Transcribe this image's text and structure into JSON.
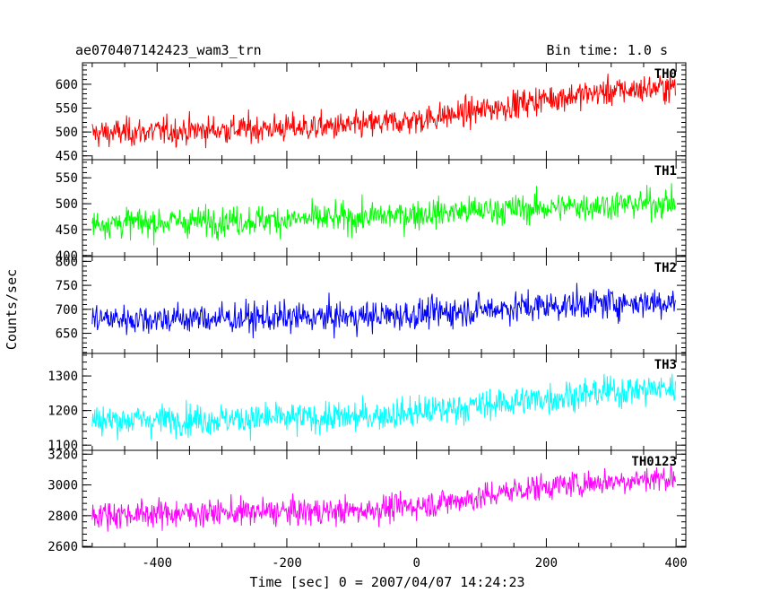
{
  "chart_data": {
    "type": "line",
    "title": "ae070407142423_wam3_trn",
    "bin_time_label": "Bin time: 1.0 s",
    "xlabel": "Time [sec] 0 = 2007/04/07 14:24:23",
    "ylabel": "Counts/sec",
    "xlim": [
      -515,
      415
    ],
    "x_ticks": [
      -400,
      -200,
      0,
      200,
      400
    ],
    "x_range_data": [
      -500,
      399
    ],
    "grid": false,
    "panels": [
      {
        "name": "TH0",
        "color": "#ff0000",
        "ylim": [
          442,
          645
        ],
        "y_ticks": [
          450,
          500,
          550,
          600
        ],
        "trend": [
          [
            -500,
            497
          ],
          [
            -300,
            505
          ],
          [
            -100,
            512
          ],
          [
            0,
            525
          ],
          [
            100,
            545
          ],
          [
            200,
            570
          ],
          [
            300,
            585
          ],
          [
            399,
            595
          ]
        ],
        "noise": 25
      },
      {
        "name": "TH1",
        "color": "#00ff00",
        "ylim": [
          398,
          585
        ],
        "y_ticks": [
          400,
          450,
          500,
          550
        ],
        "trend": [
          [
            -500,
            462
          ],
          [
            -300,
            467
          ],
          [
            -100,
            472
          ],
          [
            0,
            480
          ],
          [
            100,
            487
          ],
          [
            200,
            492
          ],
          [
            300,
            498
          ],
          [
            399,
            502
          ]
        ],
        "noise": 24
      },
      {
        "name": "TH2",
        "color": "#0000ff",
        "ylim": [
          608,
          810
        ],
        "y_ticks": [
          650,
          700,
          750,
          800
        ],
        "trend": [
          [
            -500,
            680
          ],
          [
            -300,
            681
          ],
          [
            -100,
            684
          ],
          [
            0,
            689
          ],
          [
            100,
            700
          ],
          [
            200,
            707
          ],
          [
            300,
            713
          ],
          [
            399,
            716
          ]
        ],
        "noise": 27
      },
      {
        "name": "TH3",
        "color": "#00ffff",
        "ylim": [
          1085,
          1365
        ],
        "y_ticks": [
          1100,
          1200,
          1300
        ],
        "trend": [
          [
            -500,
            1172
          ],
          [
            -300,
            1175
          ],
          [
            -100,
            1180
          ],
          [
            0,
            1195
          ],
          [
            100,
            1215
          ],
          [
            200,
            1235
          ],
          [
            300,
            1255
          ],
          [
            399,
            1265
          ]
        ],
        "noise": 38
      },
      {
        "name": "TH0123",
        "color": "#ff00ff",
        "ylim": [
          2595,
          3225
        ],
        "y_ticks": [
          2600,
          2800,
          3000,
          3200
        ],
        "trend": [
          [
            -500,
            2808
          ],
          [
            -300,
            2820
          ],
          [
            -100,
            2830
          ],
          [
            0,
            2865
          ],
          [
            100,
            2920
          ],
          [
            150,
            2965
          ],
          [
            200,
            2990
          ],
          [
            300,
            3025
          ],
          [
            399,
            3050
          ]
        ],
        "noise": 75
      }
    ]
  }
}
